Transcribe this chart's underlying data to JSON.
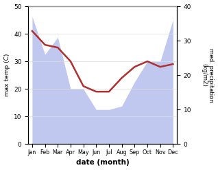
{
  "months": [
    "Jan",
    "Feb",
    "Mar",
    "Apr",
    "May",
    "Jun",
    "Jul",
    "Aug",
    "Sep",
    "Oct",
    "Nov",
    "Dec"
  ],
  "temp_max": [
    41,
    36,
    35,
    30,
    21,
    19,
    19,
    24,
    28,
    30,
    28,
    29
  ],
  "rain_values": [
    37,
    26,
    31,
    16,
    16,
    10,
    10,
    11,
    18,
    24,
    24,
    36
  ],
  "temp_ylim": [
    0,
    50
  ],
  "rain_ylim": [
    0,
    40
  ],
  "temp_color": "#b03030",
  "rain_fill_color": "#c0c8f0",
  "xlabel": "date (month)",
  "ylabel_left": "max temp (C)",
  "ylabel_right": "med. precipitation\n(kg/m2)",
  "temp_yticks": [
    0,
    10,
    20,
    30,
    40,
    50
  ],
  "rain_yticks": [
    0,
    10,
    20,
    30,
    40
  ],
  "figsize": [
    3.18,
    2.47
  ],
  "dpi": 100
}
